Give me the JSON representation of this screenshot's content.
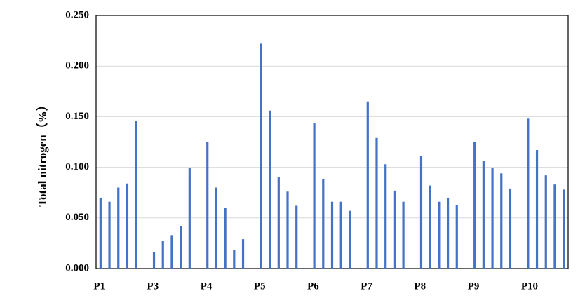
{
  "chart_data": {
    "type": "bar",
    "y_label": "Total nitrogen（%）",
    "categories": [
      "P1",
      null,
      null,
      null,
      null,
      null,
      "P3",
      null,
      null,
      null,
      null,
      null,
      "P4",
      null,
      null,
      null,
      null,
      null,
      "P5",
      null,
      null,
      null,
      null,
      null,
      "P6",
      null,
      null,
      null,
      null,
      null,
      "P7",
      null,
      null,
      null,
      null,
      null,
      "P8",
      null,
      null,
      null,
      null,
      null,
      "P9",
      null,
      null,
      null,
      null,
      null,
      "P10",
      null,
      null,
      null,
      null
    ],
    "values": [
      0.07,
      0.066,
      0.08,
      0.084,
      0.146,
      null,
      0.016,
      0.027,
      0.033,
      0.042,
      0.099,
      null,
      0.125,
      0.08,
      0.06,
      0.018,
      0.029,
      null,
      0.222,
      0.156,
      0.09,
      0.076,
      0.062,
      null,
      0.144,
      0.088,
      0.066,
      0.066,
      0.057,
      null,
      0.165,
      0.129,
      0.103,
      0.077,
      0.066,
      null,
      0.111,
      0.082,
      0.066,
      0.07,
      0.063,
      null,
      0.125,
      0.106,
      0.099,
      0.094,
      0.079,
      null,
      0.148,
      0.117,
      0.092,
      0.083,
      0.078
    ],
    "color": "#4472c4",
    "ylim": [
      0,
      0.25
    ],
    "yticks": [
      {
        "value": 0,
        "label": "0.000"
      },
      {
        "value": 0.05,
        "label": "0.050"
      },
      {
        "value": 0.1,
        "label": "0.100"
      },
      {
        "value": 0.15,
        "label": "0.150"
      },
      {
        "value": 0.2,
        "label": "0.200"
      },
      {
        "value": 0.25,
        "label": "0.250"
      }
    ],
    "grid": true
  }
}
